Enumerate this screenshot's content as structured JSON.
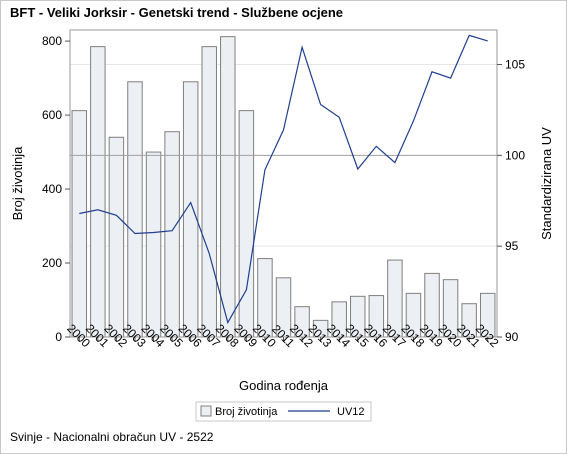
{
  "title": "BFT - Veliki Jorksir - Genetski trend - Službene ocjene",
  "footnote": "Svinje - Nacionalni obračun UV - 2522",
  "colors": {
    "bar_fill": "#eceff4",
    "bar_stroke": "#7f7f7f",
    "line": "#1f3f8f",
    "grid": "#e6e6e6",
    "ref_line": "#a0a0a0"
  },
  "chart_data": {
    "type": "bar+line",
    "categories": [
      "2000",
      "2001",
      "2002",
      "2003",
      "2004",
      "2005",
      "2006",
      "2007",
      "2008",
      "2009",
      "2010",
      "2011",
      "2012",
      "2013",
      "2014",
      "2015",
      "2016",
      "2017",
      "2018",
      "2019",
      "2020",
      "2021",
      "2022"
    ],
    "series": [
      {
        "name": "Broj životinja",
        "type": "bar",
        "axis": "left",
        "values": [
          612,
          785,
          540,
          690,
          500,
          555,
          690,
          785,
          812,
          612,
          212,
          160,
          82,
          45,
          95,
          110,
          112,
          208,
          118,
          172,
          155,
          90,
          118
        ]
      },
      {
        "name": "UV12",
        "type": "line",
        "axis": "right",
        "values": [
          96.8,
          97.0,
          96.7,
          95.7,
          95.75,
          95.85,
          97.4,
          94.6,
          90.8,
          92.6,
          99.2,
          101.4,
          105.95,
          102.8,
          102.1,
          99.25,
          100.5,
          99.6,
          101.9,
          104.6,
          104.25,
          106.6,
          106.3
        ]
      }
    ],
    "xlabel": "Godina rođenja",
    "ylabel_left": "Broj životinja",
    "ylabel_right": "Standardizirana UV",
    "ylim_left": [
      0,
      830
    ],
    "yticks_left": [
      0,
      200,
      400,
      600,
      800
    ],
    "ylim_right": [
      90,
      106.9
    ],
    "yticks_right": [
      90,
      95,
      100,
      105
    ],
    "reference_line_right": 100,
    "grid": true,
    "legend_position": "bottom"
  }
}
